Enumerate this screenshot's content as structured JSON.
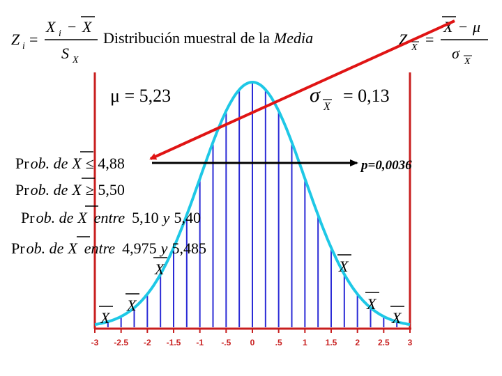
{
  "title": {
    "prefix": "Distribución muestral de la",
    "emph": "Media"
  },
  "formula_left": {
    "lhs": "Z",
    "lhs_sub": "i",
    "eq": "=",
    "num_var": "X",
    "num_sub": "i",
    "minus": "−",
    "num_bar_var": "X",
    "den": "S",
    "den_sub": "X"
  },
  "formula_right": {
    "lhs": "Z",
    "lhs_sub": "X",
    "eq": "=",
    "num_bar_var": "X",
    "minus": "−",
    "mu": "μ",
    "den": "σ",
    "den_sub": "X"
  },
  "params": {
    "mu_label": "μ = 5,23",
    "sigma_symbol": "σ",
    "sigma_sub": "X",
    "sigma_value": "= 0,13"
  },
  "probabilities": [
    {
      "pr": "Pr",
      "ob": "ob. de",
      "var": "X",
      "rel": "≤ 4,88"
    },
    {
      "pr": "Pr",
      "ob": "ob. de",
      "var": "X",
      "rel": "≥ 5,50"
    },
    {
      "pr": "Pr",
      "ob": "ob. de",
      "var": "X",
      "rel": "entre",
      "a": "5,10",
      "y": "y",
      "b": "5,40"
    },
    {
      "pr": "Pr",
      "ob": "ob. de",
      "var": "X",
      "rel": "entre",
      "a": "4,975",
      "y": "y",
      "b": "5,485"
    }
  ],
  "p_value": "p=0,0036",
  "xbar_markers": [
    "X",
    "X",
    "X",
    "X",
    "X",
    "X"
  ],
  "chart_data": {
    "type": "area",
    "x_ticks": [
      "-3",
      "-2.5",
      "-2",
      "-1.5",
      "-1",
      "-.5",
      "0",
      ".5",
      "1",
      "1.5",
      "2",
      "2.5",
      "3"
    ],
    "xlim": [
      -3,
      3
    ],
    "curve": "standard normal density",
    "vertical_lines_every": 0.25,
    "colors": {
      "curve": "#1ec8e6",
      "lines": "#2b2bd6",
      "frame": "#c81e1e",
      "arrow": "#e01414",
      "ticklabel": "#c81e1e"
    }
  }
}
